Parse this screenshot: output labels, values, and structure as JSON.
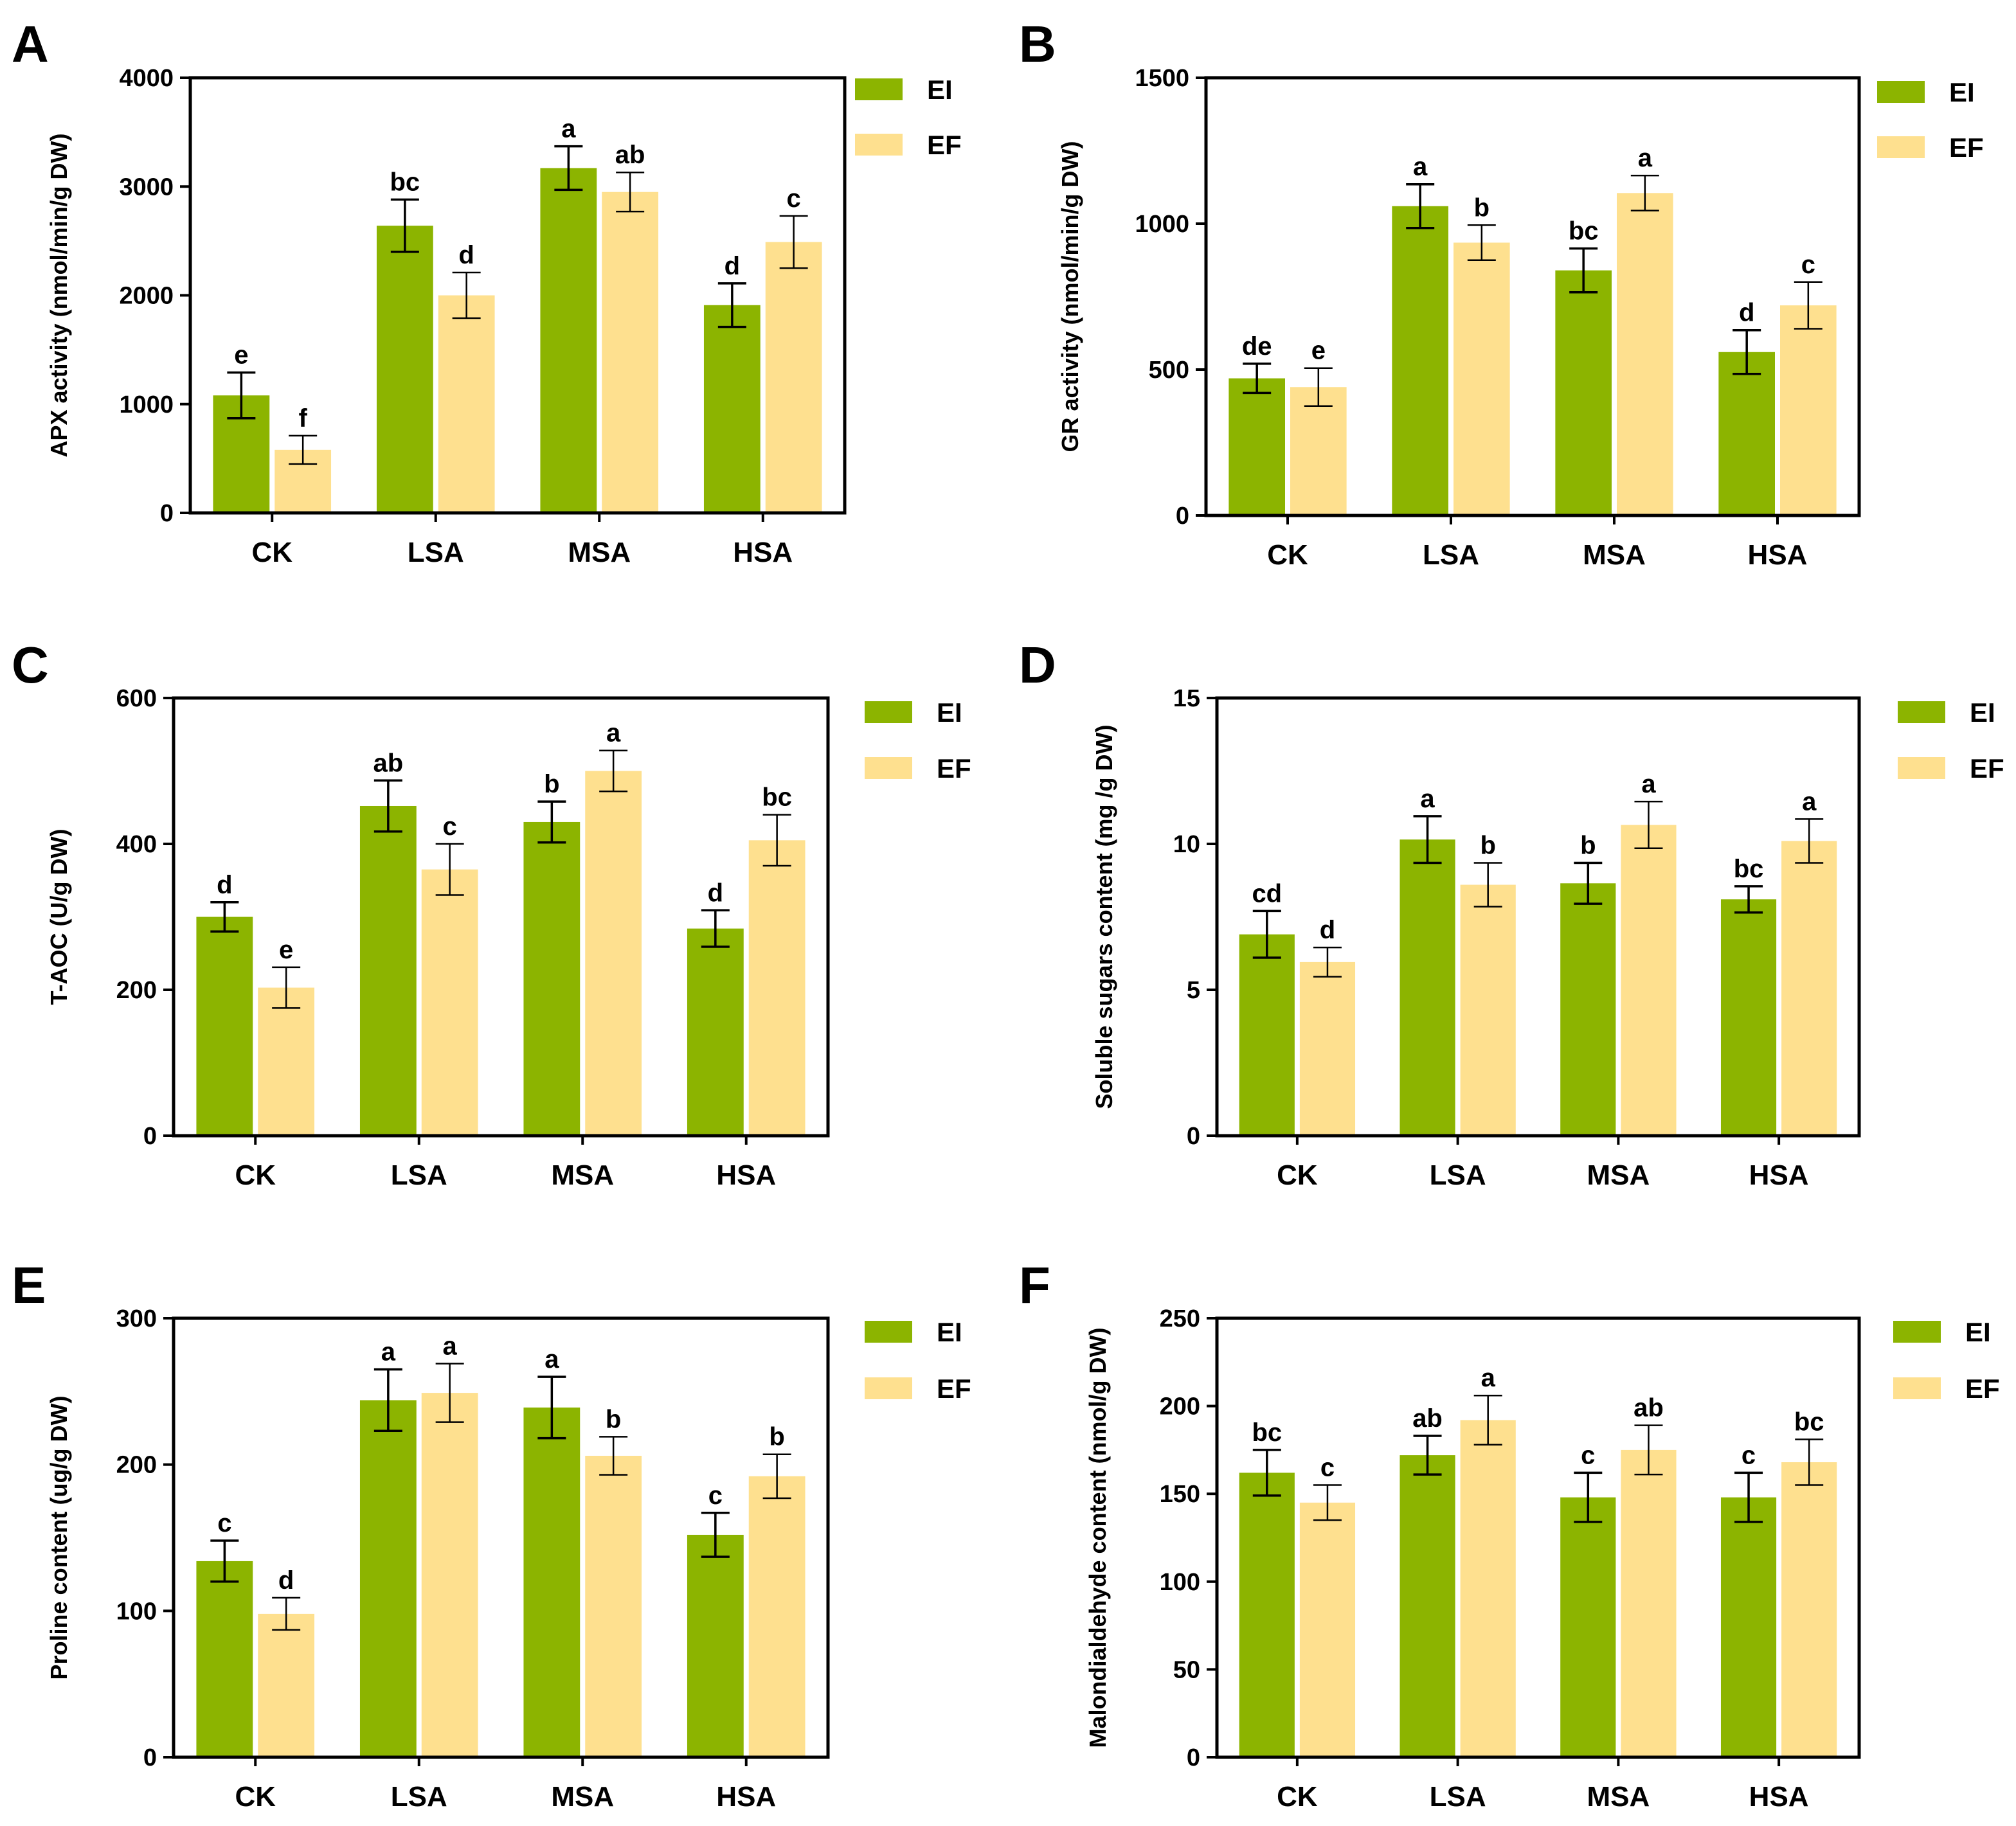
{
  "chart_data": [
    {
      "panel": "A",
      "type": "bar",
      "ylabel": "APX activity (nmol/min/g  DW)",
      "ylim": [
        0,
        4000
      ],
      "yticks": [
        0,
        1000,
        2000,
        3000,
        4000
      ],
      "categories": [
        "CK",
        "LSA",
        "MSA",
        "HSA"
      ],
      "series": [
        {
          "name": "EI",
          "color": "#8cb400",
          "values": [
            1080,
            2640,
            3170,
            1910
          ],
          "errors": [
            210,
            240,
            200,
            200
          ],
          "letters": [
            "e",
            "bc",
            "a",
            "d"
          ]
        },
        {
          "name": "EF",
          "color": "#fee08f",
          "values": [
            580,
            2000,
            2950,
            2490
          ],
          "errors": [
            130,
            210,
            180,
            240
          ],
          "letters": [
            "f",
            "d",
            "ab",
            "c"
          ]
        }
      ],
      "legend": "top-right"
    },
    {
      "panel": "B",
      "type": "bar",
      "ylabel": "GR activity (nmol/min/g  DW)",
      "ylim": [
        0,
        1500
      ],
      "yticks": [
        0,
        500,
        1000,
        1500
      ],
      "categories": [
        "CK",
        "LSA",
        "MSA",
        "HSA"
      ],
      "series": [
        {
          "name": "EI",
          "color": "#8cb400",
          "values": [
            470,
            1060,
            840,
            560
          ],
          "errors": [
            50,
            75,
            75,
            75
          ],
          "letters": [
            "de",
            "a",
            "bc",
            "d"
          ]
        },
        {
          "name": "EF",
          "color": "#fee08f",
          "values": [
            440,
            935,
            1105,
            720
          ],
          "errors": [
            65,
            60,
            60,
            80
          ],
          "letters": [
            "e",
            "b",
            "a",
            "c"
          ]
        }
      ],
      "legend": "top-right"
    },
    {
      "panel": "C",
      "type": "bar",
      "ylabel": "T-AOC (U/g DW)",
      "ylim": [
        0,
        600
      ],
      "yticks": [
        0,
        200,
        400,
        600
      ],
      "categories": [
        "CK",
        "LSA",
        "MSA",
        "HSA"
      ],
      "series": [
        {
          "name": "EI",
          "color": "#8cb400",
          "values": [
            300,
            452,
            430,
            284
          ],
          "errors": [
            20,
            35,
            28,
            25
          ],
          "letters": [
            "d",
            "ab",
            "b",
            "d"
          ]
        },
        {
          "name": "EF",
          "color": "#fee08f",
          "values": [
            203,
            365,
            500,
            405
          ],
          "errors": [
            28,
            35,
            28,
            35
          ],
          "letters": [
            "e",
            "c",
            "a",
            "bc"
          ]
        }
      ],
      "legend": "top-right"
    },
    {
      "panel": "D",
      "type": "bar",
      "ylabel": "Soluble sugars content (mg /g DW)",
      "ylim": [
        0,
        15
      ],
      "yticks": [
        0,
        5,
        10,
        15
      ],
      "categories": [
        "CK",
        "LSA",
        "MSA",
        "HSA"
      ],
      "series": [
        {
          "name": "EI",
          "color": "#8cb400",
          "values": [
            6.9,
            10.15,
            8.65,
            8.1
          ],
          "errors": [
            0.8,
            0.8,
            0.7,
            0.45
          ],
          "letters": [
            "cd",
            "a",
            "b",
            "bc"
          ]
        },
        {
          "name": "EF",
          "color": "#fee08f",
          "values": [
            5.95,
            8.6,
            10.65,
            10.1
          ],
          "errors": [
            0.5,
            0.75,
            0.8,
            0.75
          ],
          "letters": [
            "d",
            "b",
            "a",
            "a"
          ]
        }
      ],
      "legend": "top-right"
    },
    {
      "panel": "E",
      "type": "bar",
      "ylabel": "Proline content (ug/g DW)",
      "ylim": [
        0,
        300
      ],
      "yticks": [
        0,
        100,
        200,
        300
      ],
      "categories": [
        "CK",
        "LSA",
        "MSA",
        "HSA"
      ],
      "series": [
        {
          "name": "EI",
          "color": "#8cb400",
          "values": [
            134,
            244,
            239,
            152
          ],
          "errors": [
            14,
            21,
            21,
            15
          ],
          "letters": [
            "c",
            "a",
            "a",
            "c"
          ]
        },
        {
          "name": "EF",
          "color": "#fee08f",
          "values": [
            98,
            249,
            206,
            192
          ],
          "errors": [
            11,
            20,
            13,
            15
          ],
          "letters": [
            "d",
            "a",
            "b",
            "b"
          ]
        }
      ],
      "legend": "top-right"
    },
    {
      "panel": "F",
      "type": "bar",
      "ylabel": "Malondialdehyde content (nmol/g DW)",
      "ylim": [
        0,
        250
      ],
      "yticks": [
        0,
        50,
        100,
        150,
        200,
        250
      ],
      "categories": [
        "CK",
        "LSA",
        "MSA",
        "HSA"
      ],
      "series": [
        {
          "name": "EI",
          "color": "#8cb400",
          "values": [
            162,
            172,
            148,
            148
          ],
          "errors": [
            13,
            11,
            14,
            14
          ],
          "letters": [
            "bc",
            "ab",
            "c",
            "c"
          ]
        },
        {
          "name": "EF",
          "color": "#fee08f",
          "values": [
            145,
            192,
            175,
            168
          ],
          "errors": [
            10,
            14,
            14,
            13
          ],
          "letters": [
            "c",
            "a",
            "ab",
            "bc"
          ]
        }
      ],
      "legend": "top-right"
    }
  ]
}
